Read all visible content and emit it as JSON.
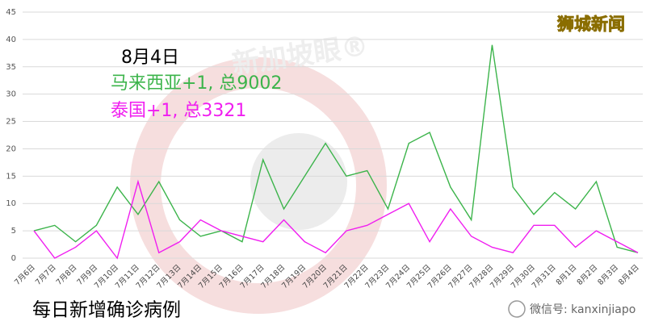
{
  "chart_data": {
    "type": "line",
    "title": "每日新增确诊病例",
    "categories": [
      "7月6日",
      "7月7日",
      "7月8日",
      "7月9日",
      "7月10日",
      "7月11日",
      "7月12日",
      "7月13日",
      "7月14日",
      "7月15日",
      "7月16日",
      "7月17日",
      "7月18日",
      "7月19日",
      "7月20日",
      "7月21日",
      "7月22日",
      "7月23日",
      "7月24日",
      "7月25日",
      "7月26日",
      "7月27日",
      "7月28日",
      "7月29日",
      "7月30日",
      "7月31日",
      "8月1日",
      "8月2日",
      "8月3日",
      "8月4日"
    ],
    "series": [
      {
        "name": "马来西亚",
        "color": "#3cb44b",
        "values": [
          5,
          6,
          3,
          6,
          13,
          8,
          14,
          7,
          4,
          5,
          3,
          18,
          9,
          15,
          21,
          15,
          16,
          9,
          21,
          23,
          13,
          7,
          39,
          13,
          8,
          12,
          9,
          14,
          2,
          1
        ]
      },
      {
        "name": "泰国",
        "color": "#f01ef0",
        "values": [
          5,
          0,
          2,
          5,
          0,
          14,
          1,
          3,
          7,
          5,
          4,
          3,
          7,
          3,
          1,
          5,
          6,
          8,
          10,
          3,
          9,
          4,
          2,
          1,
          6,
          6,
          2,
          5,
          3,
          1
        ]
      }
    ],
    "ylim": [
      0,
      45
    ],
    "yticks": [
      0,
      5,
      10,
      15,
      20,
      25,
      30,
      35,
      40,
      45
    ],
    "grid": true,
    "annotations": [
      {
        "text": "8月4日",
        "color": "#000000"
      },
      {
        "text": "马来西亚+1, 总9002",
        "color": "#3cb44b"
      },
      {
        "text": "泰国+1, 总3321",
        "color": "#f01ef0"
      }
    ],
    "watermarks": [
      "狮城新闻",
      "新加坡眼®",
      "微信号: kanxinjiapo"
    ]
  }
}
